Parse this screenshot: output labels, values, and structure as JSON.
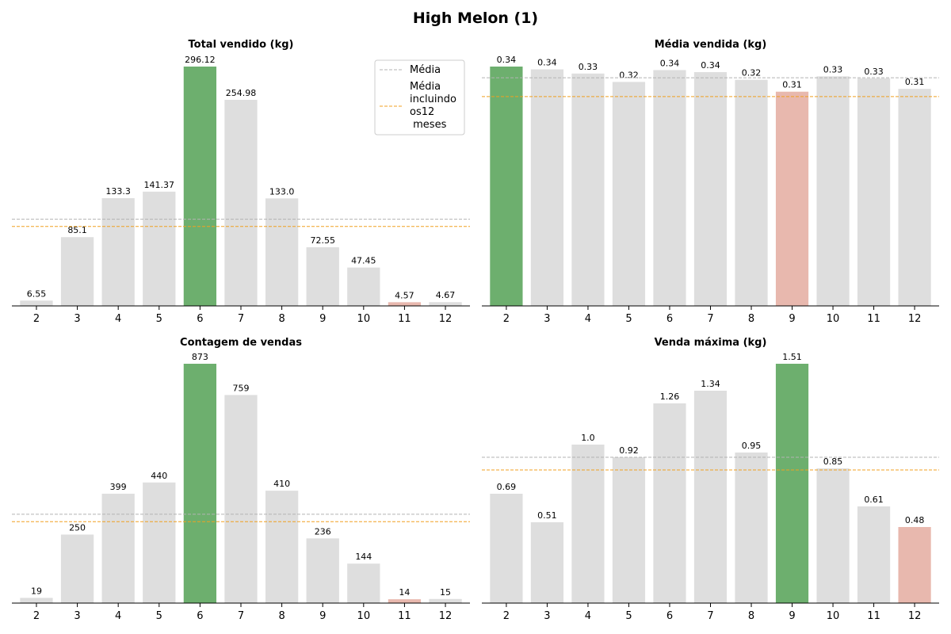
{
  "figure": {
    "title": "High Melon (1)"
  },
  "colors": {
    "bar_default": "#dedede",
    "bar_max": "#6daf6e",
    "bar_min": "#e8b8ae",
    "mean_line": "#b3b3b3",
    "mean_all_line": "#f0a020",
    "axis": "#000000"
  },
  "legend": {
    "entries": [
      "Média",
      "Média\nincluindo\nos12\n meses"
    ],
    "placement": "top-right of first chart"
  },
  "chart_data": [
    {
      "type": "bar",
      "title": "Total vendido (kg)",
      "categories": [
        "2",
        "3",
        "4",
        "5",
        "6",
        "7",
        "8",
        "9",
        "10",
        "11",
        "12"
      ],
      "values": [
        6.55,
        85.1,
        133.3,
        141.37,
        296.12,
        254.98,
        133.0,
        72.55,
        47.45,
        4.57,
        4.67
      ],
      "value_labels": [
        "6.55",
        "85.1",
        "133.3",
        "141.37",
        "296.12",
        "254.98",
        "133.0",
        "72.55",
        "47.45",
        "4.57",
        "4.67"
      ],
      "highlight_max_index": 4,
      "highlight_min_index": 9,
      "mean": 107.24,
      "mean_all_months": 98.3,
      "ylim": [
        0,
        296.12
      ],
      "legend": true
    },
    {
      "type": "bar",
      "title": "Média vendida (kg)",
      "categories": [
        "2",
        "3",
        "4",
        "5",
        "6",
        "7",
        "8",
        "9",
        "10",
        "11",
        "12"
      ],
      "values": [
        0.343,
        0.339,
        0.333,
        0.321,
        0.338,
        0.335,
        0.324,
        0.307,
        0.329,
        0.326,
        0.311
      ],
      "value_labels": [
        "0.34",
        "0.34",
        "0.33",
        "0.32",
        "0.34",
        "0.34",
        "0.32",
        "0.31",
        "0.33",
        "0.33",
        "0.31"
      ],
      "highlight_max_index": 0,
      "highlight_min_index": 7,
      "mean": 0.327,
      "mean_all_months": 0.3,
      "ylim": [
        0,
        0.343
      ],
      "legend": false
    },
    {
      "type": "bar",
      "title": "Contagem de vendas",
      "categories": [
        "2",
        "3",
        "4",
        "5",
        "6",
        "7",
        "8",
        "9",
        "10",
        "11",
        "12"
      ],
      "values": [
        19,
        250,
        399,
        440,
        873,
        759,
        410,
        236,
        144,
        14,
        15
      ],
      "value_labels": [
        "19",
        "250",
        "399",
        "440",
        "873",
        "759",
        "410",
        "236",
        "144",
        "14",
        "15"
      ],
      "highlight_max_index": 4,
      "highlight_min_index": 9,
      "mean": 324,
      "mean_all_months": 297,
      "ylim": [
        0,
        873
      ],
      "legend": false
    },
    {
      "type": "bar",
      "title": "Venda máxima (kg)",
      "categories": [
        "2",
        "3",
        "4",
        "5",
        "6",
        "7",
        "8",
        "9",
        "10",
        "11",
        "12"
      ],
      "values": [
        0.69,
        0.51,
        1.0,
        0.92,
        1.26,
        1.34,
        0.95,
        1.51,
        0.85,
        0.61,
        0.48
      ],
      "value_labels": [
        "0.69",
        "0.51",
        "1.0",
        "0.92",
        "1.26",
        "1.34",
        "0.95",
        "1.51",
        "0.85",
        "0.61",
        "0.48"
      ],
      "highlight_max_index": 7,
      "highlight_min_index": 10,
      "mean": 0.92,
      "mean_all_months": 0.84,
      "ylim": [
        0,
        1.51
      ],
      "legend": false
    }
  ]
}
